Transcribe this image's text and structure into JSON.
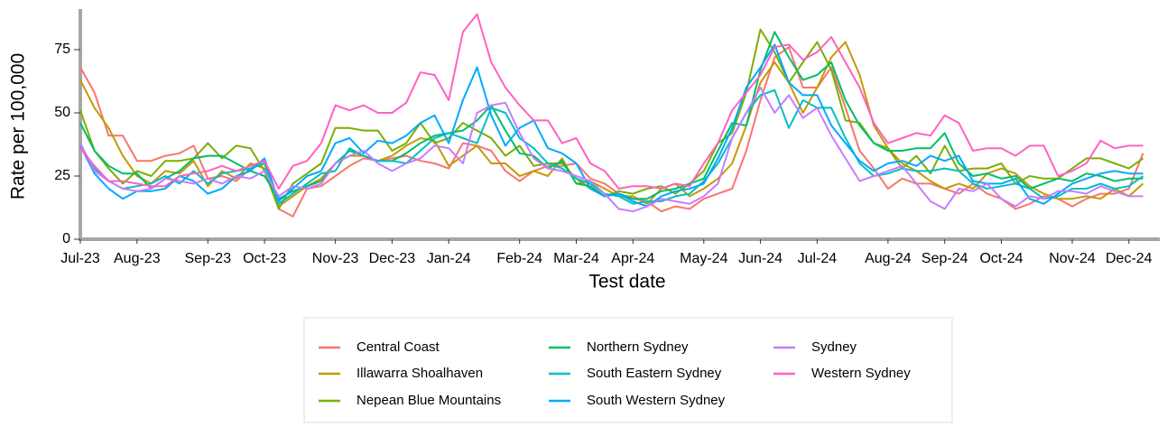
{
  "chart_data": {
    "type": "line",
    "x_label": "Test date",
    "y_label": "Rate per 100,000",
    "categories": [
      "Jul-23",
      null,
      null,
      null,
      "Aug-23",
      null,
      null,
      null,
      null,
      "Sep-23",
      null,
      null,
      null,
      "Oct-23",
      null,
      null,
      null,
      null,
      "Nov-23",
      null,
      null,
      null,
      "Dec-23",
      null,
      null,
      null,
      "Jan-24",
      null,
      null,
      null,
      null,
      "Feb-24",
      null,
      null,
      null,
      "Mar-24",
      null,
      null,
      null,
      "Apr-24",
      null,
      null,
      null,
      null,
      "May-24",
      null,
      null,
      null,
      "Jun-24",
      null,
      null,
      null,
      "Jul-24",
      null,
      null,
      null,
      null,
      "Aug-24",
      null,
      null,
      null,
      "Sep-24",
      null,
      null,
      null,
      "Oct-24",
      null,
      null,
      null,
      null,
      "Nov-24",
      null,
      null,
      null,
      "Dec-24",
      null
    ],
    "ylim": [
      0,
      90
    ],
    "yticks": [
      0,
      25,
      50,
      75
    ],
    "grid": false,
    "legend": "bottom",
    "series": [
      {
        "name": "Central Coast",
        "color": "#F8766D",
        "values": [
          68,
          58,
          41,
          41,
          31,
          31,
          33,
          34,
          37,
          24,
          25,
          23,
          28,
          31,
          12,
          9,
          20,
          21,
          25,
          29,
          32,
          31,
          32,
          33,
          31,
          30,
          28,
          38,
          37,
          35,
          27,
          23,
          27,
          29,
          29,
          30,
          24,
          22,
          18,
          16,
          15,
          11,
          13,
          12,
          16,
          18,
          20,
          35,
          55,
          72,
          76,
          60,
          60,
          68,
          52,
          35,
          28,
          20,
          24,
          22,
          22,
          20,
          18,
          22,
          18,
          16,
          12,
          14,
          17,
          16,
          13,
          16,
          18,
          18,
          20,
          34
        ]
      },
      {
        "name": "Illawarra Shoalhaven",
        "color": "#C49A00",
        "values": [
          63,
          52,
          44,
          33,
          25,
          22,
          27,
          26,
          31,
          21,
          27,
          24,
          30,
          28,
          13,
          17,
          21,
          24,
          30,
          33,
          33,
          31,
          33,
          37,
          40,
          39,
          29,
          33,
          37,
          30,
          30,
          25,
          27,
          25,
          32,
          22,
          23,
          20,
          17,
          17,
          14,
          20,
          22,
          17,
          20,
          24,
          30,
          45,
          62,
          70,
          62,
          50,
          60,
          72,
          78,
          65,
          45,
          36,
          30,
          27,
          23,
          20,
          22,
          20,
          26,
          28,
          26,
          21,
          18,
          16,
          16,
          17,
          16,
          20,
          17,
          22
        ]
      },
      {
        "name": "Nepean Blue Mountains",
        "color": "#7CAE00",
        "values": [
          51,
          35,
          28,
          22,
          27,
          25,
          31,
          31,
          32,
          38,
          32,
          37,
          36,
          27,
          12,
          22,
          26,
          30,
          44,
          44,
          43,
          43,
          35,
          38,
          46,
          38,
          40,
          46,
          43,
          40,
          33,
          37,
          29,
          30,
          30,
          24,
          20,
          17,
          19,
          18,
          20,
          21,
          18,
          22,
          27,
          38,
          42,
          58,
          83,
          74,
          62,
          70,
          78,
          67,
          47,
          46,
          38,
          36,
          28,
          33,
          26,
          37,
          27,
          28,
          28,
          30,
          22,
          25,
          24,
          24,
          28,
          32,
          32,
          30,
          28,
          32
        ]
      },
      {
        "name": "Northern Sydney",
        "color": "#00BE67",
        "values": [
          46,
          35,
          29,
          26,
          26,
          20,
          24,
          27,
          32,
          33,
          33,
          30,
          27,
          25,
          16,
          19,
          21,
          23,
          30,
          35,
          33,
          31,
          31,
          34,
          38,
          41,
          42,
          43,
          47,
          53,
          43,
          34,
          33,
          28,
          31,
          22,
          21,
          17,
          18,
          16,
          16,
          19,
          20,
          22,
          24,
          35,
          46,
          45,
          67,
          82,
          72,
          63,
          65,
          70,
          55,
          45,
          38,
          35,
          35,
          36,
          36,
          42,
          30,
          25,
          26,
          24,
          25,
          20,
          22,
          24,
          23,
          26,
          25,
          23,
          24,
          24
        ]
      },
      {
        "name": "South Eastern Sydney",
        "color": "#00BFC4",
        "values": [
          37,
          28,
          23,
          20,
          21,
          22,
          25,
          22,
          27,
          22,
          26,
          27,
          28,
          30,
          14,
          18,
          22,
          26,
          27,
          36,
          33,
          31,
          31,
          30,
          35,
          40,
          42,
          40,
          38,
          52,
          50,
          40,
          36,
          30,
          28,
          24,
          22,
          18,
          17,
          14,
          15,
          15,
          17,
          18,
          23,
          30,
          40,
          50,
          57,
          59,
          44,
          55,
          52,
          52,
          40,
          30,
          25,
          26,
          28,
          27,
          27,
          28,
          27,
          22,
          20,
          21,
          22,
          20,
          16,
          17,
          20,
          20,
          22,
          20,
          21,
          25
        ]
      },
      {
        "name": "South Western Sydney",
        "color": "#00A9FF",
        "values": [
          37,
          26,
          20,
          16,
          19,
          19,
          20,
          25,
          23,
          18,
          20,
          25,
          27,
          32,
          15,
          20,
          25,
          27,
          38,
          40,
          34,
          39,
          38,
          41,
          46,
          49,
          38,
          55,
          68,
          49,
          37,
          44,
          47,
          36,
          34,
          30,
          20,
          17,
          18,
          15,
          13,
          17,
          19,
          20,
          22,
          32,
          44,
          60,
          68,
          77,
          62,
          57,
          57,
          45,
          38,
          31,
          27,
          30,
          31,
          29,
          33,
          31,
          33,
          23,
          22,
          22,
          24,
          16,
          14,
          18,
          22,
          24,
          26,
          27,
          26,
          26
        ]
      },
      {
        "name": "Sydney",
        "color": "#C77CFF",
        "values": [
          38,
          27,
          23,
          20,
          19,
          20,
          24,
          23,
          22,
          24,
          22,
          25,
          24,
          27,
          17,
          21,
          20,
          22,
          30,
          33,
          35,
          30,
          27,
          30,
          32,
          37,
          36,
          30,
          50,
          53,
          54,
          42,
          32,
          28,
          27,
          25,
          23,
          18,
          12,
          11,
          13,
          16,
          15,
          14,
          17,
          22,
          40,
          50,
          60,
          50,
          57,
          48,
          52,
          41,
          32,
          23,
          25,
          27,
          29,
          22,
          15,
          12,
          20,
          19,
          22,
          16,
          13,
          17,
          16,
          19,
          19,
          18,
          21,
          19,
          17,
          17
        ]
      },
      {
        "name": "Western Sydney",
        "color": "#FF61C3",
        "values": [
          36,
          29,
          23,
          23,
          22,
          21,
          21,
          25,
          26,
          27,
          29,
          27,
          29,
          31,
          20,
          29,
          31,
          38,
          53,
          51,
          53,
          50,
          50,
          54,
          66,
          65,
          55,
          82,
          89,
          70,
          60,
          53,
          47,
          47,
          38,
          40,
          30,
          27,
          20,
          21,
          21,
          20,
          22,
          21,
          30,
          38,
          51,
          58,
          65,
          76,
          77,
          71,
          74,
          80,
          70,
          60,
          46,
          38,
          40,
          42,
          41,
          49,
          46,
          35,
          36,
          36,
          33,
          37,
          37,
          25,
          27,
          30,
          39,
          36,
          37,
          37
        ]
      }
    ]
  }
}
